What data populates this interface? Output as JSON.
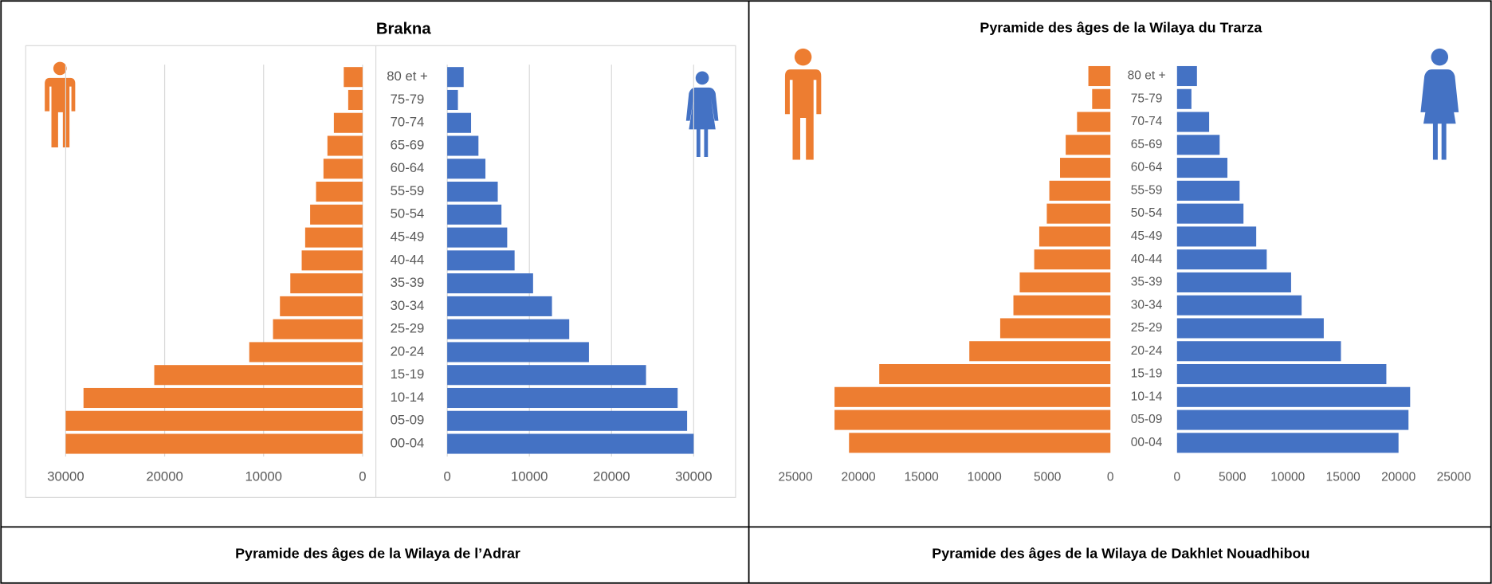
{
  "chart_data": [
    {
      "type": "bar",
      "title": "Brakna",
      "grid": true,
      "categories": [
        "80 et +",
        "75-79",
        "70-74",
        "65-69",
        "60-64",
        "55-59",
        "50-54",
        "45-49",
        "40-44",
        "35-39",
        "30-34",
        "25-29",
        "20-24",
        "15-19",
        "10-14",
        "05-09",
        "00-04"
      ],
      "series": [
        {
          "color": "#ed7d31",
          "side": "left",
          "xlim": [
            0,
            30000
          ],
          "xticks": [
            30000,
            20000,
            10000,
            0
          ],
          "values": [
            1900,
            1450,
            2900,
            3550,
            3950,
            4700,
            5300,
            5800,
            6150,
            7300,
            8350,
            9050,
            11450,
            21050,
            28200,
            30000,
            30000
          ]
        },
        {
          "color": "#4472c4",
          "side": "right",
          "xlim": [
            0,
            30000
          ],
          "xticks": [
            0,
            10000,
            20000,
            30000
          ],
          "values": [
            2000,
            1300,
            2900,
            3800,
            4650,
            6150,
            6600,
            7300,
            8200,
            10450,
            12750,
            14850,
            17250,
            24200,
            28050,
            29200,
            30000
          ]
        }
      ]
    },
    {
      "type": "bar",
      "title": "Pyramide des âges de la Wilaya du Trarza",
      "grid": false,
      "categories": [
        "80 et +",
        "75-79",
        "70-74",
        "65-69",
        "60-64",
        "55-59",
        "50-54",
        "45-49",
        "40-44",
        "35-39",
        "30-34",
        "25-29",
        "20-24",
        "15-19",
        "10-14",
        "05-09",
        "00-04"
      ],
      "series": [
        {
          "color": "#ed7d31",
          "side": "left",
          "xlim": [
            0,
            25000
          ],
          "xticks": [
            25000,
            20000,
            15000,
            10000,
            5000,
            0
          ],
          "values": [
            1750,
            1450,
            2650,
            3550,
            4000,
            4850,
            5050,
            5650,
            6050,
            7200,
            7700,
            8750,
            11200,
            18350,
            21900,
            21900,
            20750
          ]
        },
        {
          "color": "#4472c4",
          "side": "right",
          "xlim": [
            0,
            25000
          ],
          "xticks": [
            0,
            5000,
            10000,
            15000,
            20000,
            25000
          ],
          "values": [
            1800,
            1300,
            2900,
            3850,
            4550,
            5650,
            6000,
            7150,
            8100,
            10300,
            11250,
            13250,
            14800,
            18900,
            21050,
            20900,
            20000
          ]
        }
      ]
    }
  ],
  "captions": [
    "Pyramide des âges de la Wilaya de l’Adrar",
    "Pyramide des âges de la Wilaya de Dakhlet Nouadhibou"
  ]
}
